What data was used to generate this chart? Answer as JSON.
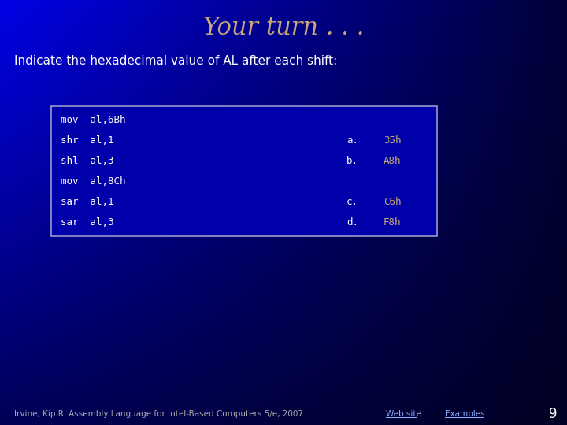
{
  "title": "Your turn . . .",
  "title_color": "#C8A878",
  "title_fontsize": 22,
  "subtitle": "Indicate the hexadecimal value of AL after each shift:",
  "subtitle_color": "#FFFFFF",
  "subtitle_fontsize": 11,
  "box_bg_color": "#0000AA",
  "box_border_color": "#9999CC",
  "code_lines": [
    "mov  al,6Bh",
    "shr  al,1",
    "shl  al,3",
    "mov  al,8Ch",
    "sar  al,1",
    "sar  al,3"
  ],
  "answer_labels": [
    "a.",
    "b.",
    "c.",
    "d."
  ],
  "answer_values": [
    "35h",
    "A8h",
    "C6h",
    "F8h"
  ],
  "answer_color": "#C8A878",
  "answer_label_color": "#FFFFFF",
  "code_color": "#FFFFFF",
  "footer_left": "Irvine, Kip R. Assembly Language for Intel-Based Computers 5/e, 2007.",
  "footer_left_color": "#AAAAAA",
  "footer_link1": "Web site",
  "footer_link2": "Examples",
  "footer_link_color": "#88AAFF",
  "page_number": "9",
  "page_number_color": "#FFFFFF",
  "footer_fontsize": 7.5,
  "answer_indices": [
    1,
    2,
    4,
    5
  ]
}
